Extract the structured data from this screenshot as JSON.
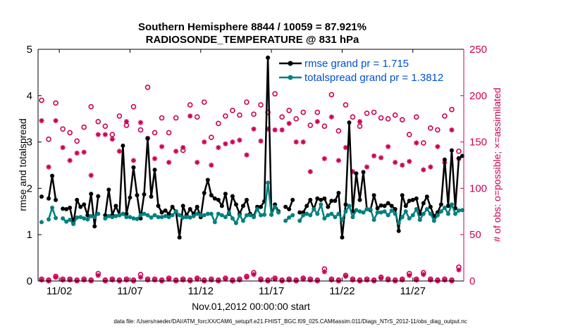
{
  "chart_data": {
    "type": "line",
    "title_line1": "Southern Hemisphere 8844 / 10059 = 87.921%",
    "title_line2": "RADIOSONDE_TEMPERATURE @ 831 hPa",
    "xlabel": "Nov.01,2012 00:00:00 start",
    "ylabel_left": "rmse and totalspread",
    "ylabel_right": "# of obs: o=possible; ×=assimilated",
    "footnote": "data file: /Users/raeder/DAI/ATM_forcXX/CAM6_setup/f.e21.FHIST_BGC.f09_025.CAM6assim.011/Diags_NTrS_2012-11/obs_diag_output.nc",
    "xlim": [
      0.5,
      30.6
    ],
    "ylim_left": [
      0,
      5
    ],
    "ylim_right": [
      0,
      250
    ],
    "x_ticks": [
      {
        "x": 2,
        "label": "11/02"
      },
      {
        "x": 7,
        "label": "11/07"
      },
      {
        "x": 12,
        "label": "11/12"
      },
      {
        "x": 17,
        "label": "11/17"
      },
      {
        "x": 22,
        "label": "11/22"
      },
      {
        "x": 27,
        "label": "11/27"
      }
    ],
    "y_ticks_left": [
      0,
      1,
      2,
      3,
      4,
      5
    ],
    "y_ticks_right": [
      0,
      50,
      100,
      150,
      200,
      250
    ],
    "colors": {
      "rmse": "#000000",
      "totalspread": "#008080",
      "obs": "#cc0055",
      "legend_text": "#0050d0",
      "right_axis": "#cc0055"
    },
    "legend": {
      "position": "top-right",
      "entries": [
        "rmse grand pr = 1.715",
        "totalspread grand pr = 1.3812"
      ]
    },
    "series": [
      {
        "name": "rmse",
        "axis": "left",
        "x": [
          0.75,
          1.0,
          1.25,
          1.5,
          1.75,
          2.0,
          2.25,
          2.5,
          2.75,
          3.0,
          3.25,
          3.5,
          3.75,
          4.0,
          4.25,
          4.5,
          4.75,
          5.0,
          5.25,
          5.5,
          5.75,
          6.0,
          6.25,
          6.5,
          6.75,
          7.0,
          7.25,
          7.5,
          7.75,
          8.0,
          8.25,
          8.5,
          8.75,
          9.0,
          9.25,
          9.5,
          9.75,
          10.0,
          10.25,
          10.5,
          10.75,
          11.0,
          11.25,
          11.5,
          11.75,
          12.0,
          12.25,
          12.5,
          12.75,
          13.0,
          13.25,
          13.5,
          13.75,
          14.0,
          14.25,
          14.5,
          14.75,
          15.0,
          15.25,
          15.5,
          15.75,
          16.0,
          16.25,
          16.5,
          16.75,
          17.0,
          17.25,
          17.5,
          17.75,
          18.0,
          18.25,
          18.5,
          18.75,
          19.0,
          19.25,
          19.5,
          19.75,
          20.0,
          20.25,
          20.5,
          20.75,
          21.0,
          21.25,
          21.5,
          21.75,
          22.0,
          22.25,
          22.5,
          22.75,
          23.0,
          23.25,
          23.5,
          23.75,
          24.0,
          24.25,
          24.5,
          24.75,
          25.0,
          25.25,
          25.5,
          25.75,
          26.0,
          26.25,
          26.5,
          26.75,
          27.0,
          27.25,
          27.5,
          27.75,
          28.0,
          28.25,
          28.5,
          28.75,
          29.0,
          29.25,
          29.5,
          29.75,
          30.0,
          30.25,
          30.5
        ],
        "values": [
          1.82,
          null,
          1.78,
          2.27,
          1.75,
          null,
          1.56,
          1.55,
          1.58,
          1.25,
          1.75,
          1.6,
          1.65,
          1.42,
          1.88,
          1.18,
          1.83,
          null,
          1.42,
          1.97,
          1.42,
          1.62,
          1.42,
          2.92,
          1.45,
          1.8,
          2.45,
          1.85,
          1.35,
          1.87,
          3.08,
          1.82,
          2.4,
          1.62,
          1.48,
          1.52,
          1.45,
          1.6,
          1.5,
          0.94,
          1.62,
          1.42,
          1.55,
          1.45,
          1.6,
          1.38,
          1.9,
          2.18,
          1.85,
          1.78,
          1.75,
          1.62,
          1.88,
          1.45,
          1.83,
          1.65,
          1.45,
          1.62,
          1.75,
          1.45,
          1.4,
          1.6,
          1.6,
          1.72,
          4.82,
          1.43,
          1.65,
          1.5,
          null,
          1.6,
          1.55,
          1.75,
          null,
          1.48,
          1.48,
          1.62,
          1.75,
          1.55,
          1.78,
          1.75,
          1.78,
          1.6,
          1.73,
          1.73,
          1.9,
          0.94,
          1.65,
          3.42,
          1.5,
          2.32,
          1.75,
          2.35,
          1.55,
          1.53,
          1.85,
          1.57,
          1.63,
          1.62,
          1.68,
          1.62,
          1.55,
          1.08,
          1.85,
          1.62,
          1.73,
          1.75,
          1.78,
          1.45,
          1.68,
          1.82,
          1.6,
          1.4,
          1.48,
          1.65,
          2.62,
          1.62,
          2.82,
          1.57,
          2.65,
          2.7
        ]
      },
      {
        "name": "totalspread",
        "axis": "left",
        "x": [
          0.75,
          1.0,
          1.25,
          1.5,
          1.75,
          2.0,
          2.25,
          2.5,
          2.75,
          3.0,
          3.25,
          3.5,
          3.75,
          4.0,
          4.25,
          4.5,
          4.75,
          5.0,
          5.25,
          5.5,
          5.75,
          6.0,
          6.25,
          6.5,
          6.75,
          7.0,
          7.25,
          7.5,
          7.75,
          8.0,
          8.25,
          8.5,
          8.75,
          9.0,
          9.25,
          9.5,
          9.75,
          10.0,
          10.25,
          10.5,
          10.75,
          11.0,
          11.25,
          11.5,
          11.75,
          12.0,
          12.25,
          12.5,
          12.75,
          13.0,
          13.25,
          13.5,
          13.75,
          14.0,
          14.25,
          14.5,
          14.75,
          15.0,
          15.25,
          15.5,
          15.75,
          16.0,
          16.25,
          16.5,
          16.75,
          17.0,
          17.25,
          17.5,
          17.75,
          18.0,
          18.25,
          18.5,
          18.75,
          19.0,
          19.25,
          19.5,
          19.75,
          20.0,
          20.25,
          20.5,
          20.75,
          21.0,
          21.25,
          21.5,
          21.75,
          22.0,
          22.25,
          22.5,
          22.75,
          23.0,
          23.25,
          23.5,
          23.75,
          24.0,
          24.25,
          24.5,
          24.75,
          25.0,
          25.25,
          25.5,
          25.75,
          26.0,
          26.25,
          26.5,
          26.75,
          27.0,
          27.25,
          27.5,
          27.75,
          28.0,
          28.25,
          28.5,
          28.75,
          29.0,
          29.25,
          29.5,
          29.75,
          30.0,
          30.25,
          30.5
        ],
        "values": [
          1.27,
          null,
          1.33,
          1.58,
          1.36,
          null,
          1.35,
          1.28,
          1.32,
          1.23,
          1.37,
          1.38,
          1.35,
          1.33,
          1.4,
          1.38,
          1.45,
          null,
          1.35,
          1.4,
          1.38,
          1.4,
          1.42,
          1.45,
          1.38,
          1.38,
          1.35,
          1.34,
          1.42,
          1.45,
          1.42,
          1.37,
          1.42,
          1.38,
          1.38,
          1.4,
          1.38,
          1.42,
          1.5,
          1.42,
          1.37,
          1.38,
          1.37,
          1.4,
          1.45,
          1.42,
          1.42,
          1.45,
          1.45,
          1.27,
          1.45,
          1.42,
          1.38,
          1.48,
          1.35,
          1.25,
          1.42,
          1.3,
          1.42,
          1.42,
          1.38,
          1.55,
          1.42,
          1.43,
          2.12,
          1.43,
          1.6,
          1.48,
          null,
          1.3,
          1.37,
          1.42,
          null,
          1.3,
          1.42,
          1.45,
          1.42,
          1.55,
          1.45,
          1.65,
          1.35,
          1.42,
          1.45,
          1.38,
          1.45,
          1.32,
          1.5,
          1.62,
          1.38,
          1.53,
          1.5,
          1.48,
          1.55,
          1.55,
          1.32,
          1.48,
          1.48,
          1.5,
          1.42,
          1.52,
          1.45,
          1.25,
          1.38,
          1.5,
          1.35,
          1.42,
          1.55,
          1.32,
          1.45,
          1.55,
          1.45,
          1.3,
          1.42,
          1.5,
          1.58,
          1.45,
          1.65,
          1.45,
          1.52,
          1.53
        ]
      },
      {
        "name": "obs possible",
        "axis": "right",
        "marker": "circle",
        "x": [
          0.75,
          1.25,
          1.75,
          2.25,
          2.75,
          3.25,
          3.75,
          4.25,
          4.75,
          5.25,
          5.75,
          6.25,
          6.75,
          7.25,
          7.75,
          8.25,
          8.75,
          9.25,
          9.75,
          10.25,
          10.75,
          11.25,
          11.75,
          12.25,
          12.75,
          13.25,
          13.75,
          14.25,
          14.75,
          15.25,
          15.75,
          16.25,
          16.75,
          17.25,
          17.75,
          18.25,
          18.75,
          19.25,
          19.75,
          20.25,
          20.75,
          21.25,
          21.75,
          22.25,
          22.75,
          23.25,
          23.75,
          24.25,
          24.75,
          25.25,
          25.75,
          26.25,
          26.75,
          27.25,
          27.75,
          28.25,
          28.75,
          29.25,
          29.75,
          30.25
        ],
        "values": [
          195,
          153,
          192,
          164,
          160,
          151,
          166,
          188,
          172,
          167,
          158,
          178,
          168,
          188,
          163,
          209,
          160,
          176,
          160,
          176,
          141,
          190,
          177,
          193,
          155,
          170,
          178,
          184,
          179,
          193,
          180,
          190,
          182,
          202,
          177,
          184,
          175,
          182,
          168,
          182,
          167,
          201,
          162,
          190,
          177,
          167,
          181,
          182,
          176,
          175,
          179,
          174,
          158,
          177,
          149,
          165,
          163,
          178,
          185,
          140
        ]
      },
      {
        "name": "obs assimilated",
        "axis": "right",
        "marker": "asterisk",
        "x": [
          0.75,
          1.25,
          1.75,
          2.25,
          2.75,
          3.25,
          3.75,
          4.25,
          4.75,
          5.25,
          5.75,
          6.25,
          6.75,
          7.25,
          7.75,
          8.25,
          8.75,
          9.25,
          9.75,
          10.25,
          10.75,
          11.25,
          11.75,
          12.25,
          12.75,
          13.25,
          13.75,
          14.25,
          14.75,
          15.25,
          15.75,
          16.25,
          16.75,
          17.25,
          17.75,
          18.25,
          18.75,
          19.25,
          19.75,
          20.25,
          20.75,
          21.25,
          21.75,
          22.25,
          22.75,
          23.25,
          23.75,
          24.25,
          24.75,
          25.25,
          25.75,
          26.25,
          26.75,
          27.25,
          27.75,
          28.25,
          28.75,
          29.25,
          29.75,
          30.25
        ],
        "values": [
          173,
          123,
          173,
          144,
          130,
          138,
          139,
          114,
          158,
          158,
          153,
          140,
          172,
          130,
          171,
          154,
          132,
          145,
          128,
          140,
          144,
          178,
          128,
          150,
          125,
          144,
          148,
          150,
          152,
          136,
          164,
          151,
          164,
          163,
          163,
          170,
          150,
          150,
          118,
          172,
          132,
          177,
          130,
          144,
          118,
          172,
          123,
          135,
          133,
          145,
          128,
          125,
          129,
          149,
          120,
          123,
          145,
          128,
          163,
          132
        ]
      },
      {
        "name": "obs possible (bottom row)",
        "axis": "right",
        "marker": "circle",
        "x": [
          0.75,
          1.25,
          1.75,
          2.25,
          2.75,
          3.25,
          3.75,
          4.25,
          4.75,
          5.25,
          5.75,
          6.25,
          6.75,
          7.25,
          7.75,
          8.25,
          8.75,
          9.25,
          9.75,
          10.25,
          10.75,
          11.25,
          11.75,
          12.25,
          12.75,
          13.25,
          13.75,
          14.25,
          14.75,
          15.25,
          15.75,
          16.25,
          16.75,
          17.25,
          17.75,
          18.25,
          18.75,
          19.25,
          19.75,
          20.25,
          20.75,
          21.25,
          21.75,
          22.25,
          22.75,
          23.25,
          23.75,
          24.25,
          24.75,
          25.25,
          25.75,
          26.25,
          26.75,
          27.25,
          27.75,
          28.25,
          28.75,
          29.25,
          29.75,
          30.25
        ],
        "values": [
          2,
          1,
          5,
          2,
          2,
          1,
          2,
          1,
          8,
          1,
          2,
          1,
          2,
          1,
          7,
          2,
          2,
          1,
          3,
          1,
          2,
          1,
          3,
          1,
          2,
          1,
          3,
          1,
          2,
          5,
          9,
          2,
          1,
          3,
          1,
          2,
          1,
          3,
          2,
          1,
          13,
          2,
          1,
          6,
          2,
          1,
          2,
          1,
          4,
          2,
          1,
          2,
          8,
          2,
          9,
          2,
          1,
          2,
          1,
          15
        ]
      },
      {
        "name": "obs assimilated (bottom row)",
        "axis": "right",
        "marker": "asterisk",
        "x": [
          0.75,
          1.25,
          1.75,
          2.25,
          2.75,
          3.25,
          3.75,
          4.25,
          4.75,
          5.25,
          5.75,
          6.25,
          6.75,
          7.25,
          7.75,
          8.25,
          8.75,
          9.25,
          9.75,
          10.25,
          10.75,
          11.25,
          11.75,
          12.25,
          12.75,
          13.25,
          13.75,
          14.25,
          14.75,
          15.25,
          15.75,
          16.25,
          16.75,
          17.25,
          17.75,
          18.25,
          18.75,
          19.25,
          19.75,
          20.25,
          20.75,
          21.25,
          21.75,
          22.25,
          22.75,
          23.25,
          23.75,
          24.25,
          24.75,
          25.25,
          25.75,
          26.25,
          26.75,
          27.25,
          27.75,
          28.25,
          28.75,
          29.25,
          29.75,
          30.25
        ],
        "values": [
          1,
          0,
          4,
          1,
          1,
          0,
          1,
          0,
          6,
          0,
          1,
          0,
          1,
          0,
          4,
          1,
          1,
          0,
          2,
          0,
          1,
          0,
          2,
          0,
          1,
          0,
          2,
          0,
          1,
          4,
          7,
          1,
          0,
          2,
          0,
          1,
          0,
          2,
          1,
          0,
          10,
          1,
          0,
          5,
          1,
          0,
          1,
          0,
          3,
          1,
          0,
          1,
          6,
          1,
          7,
          1,
          0,
          1,
          0,
          12
        ]
      }
    ]
  }
}
